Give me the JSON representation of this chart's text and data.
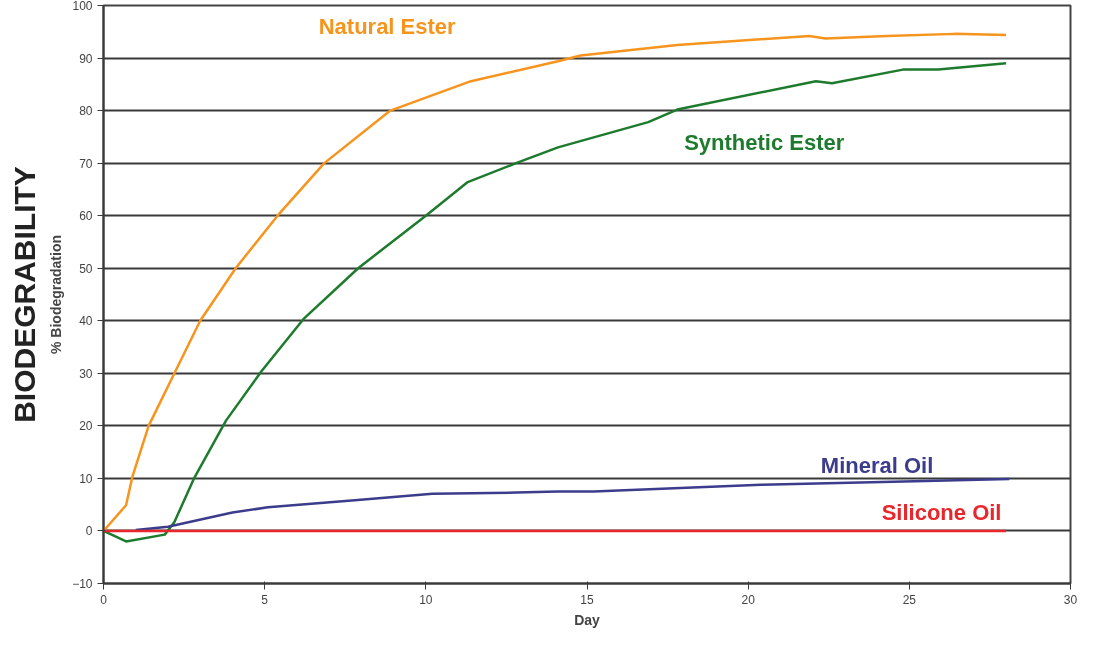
{
  "chart_data": {
    "type": "line",
    "title": "BIODEGRABILITY",
    "xlabel": "Day",
    "ylabel": "% Biodegradation",
    "xlim": [
      0,
      30
    ],
    "xticks": [
      0,
      5,
      10,
      15,
      20,
      25,
      30
    ],
    "ylim": [
      -10,
      100
    ],
    "yticks": [
      -10,
      0,
      10,
      20,
      30,
      40,
      50,
      60,
      70,
      80,
      90,
      100
    ],
    "grid": "y",
    "line_style": "solid",
    "series": [
      {
        "name": "Natural Ester",
        "color": "#f7941d",
        "x": [
          0,
          0.7,
          0.9,
          1.4,
          2.2,
          3.0,
          4.1,
          5.4,
          6.85,
          8.9,
          11.4,
          14.1,
          14.8,
          17.8,
          21.9,
          22.4,
          24.3,
          26.4,
          28
        ],
        "values": [
          0,
          4.9,
          10.4,
          20,
          30,
          40,
          50,
          60,
          70,
          80,
          85.6,
          89.4,
          90.5,
          92.5,
          94.2,
          93.7,
          94.2,
          94.6,
          94.4
        ]
      },
      {
        "name": "Synthetic Ester",
        "color": "#1e7b2e",
        "x": [
          0,
          0.7,
          1.9,
          2.2,
          2.8,
          3.8,
          4.9,
          6.2,
          7.9,
          10.0,
          11.3,
          12.8,
          14.1,
          16.9,
          17.8,
          22.1,
          22.6,
          24.8,
          25.9,
          28
        ],
        "values": [
          0,
          -2,
          -0.7,
          1.7,
          9.9,
          21,
          30.4,
          40.3,
          50,
          60,
          66.4,
          70,
          73,
          77.8,
          80.2,
          85.6,
          85.2,
          87.8,
          87.8,
          89
        ]
      },
      {
        "name": "Mineral Oil",
        "color": "#3c3c8c",
        "x": [
          1.0,
          2.0,
          4.0,
          5.1,
          7.7,
          10.2,
          12.8,
          14.1,
          15.2,
          20.4,
          25.5,
          28.1
        ],
        "values": [
          0.2,
          0.8,
          3.5,
          4.5,
          5.8,
          7.1,
          7.3,
          7.5,
          7.5,
          8.8,
          9.5,
          9.9
        ]
      },
      {
        "name": "Silicone Oil",
        "color": "#e8262b",
        "x": [
          0,
          28
        ],
        "values": [
          0,
          0
        ]
      }
    ]
  }
}
